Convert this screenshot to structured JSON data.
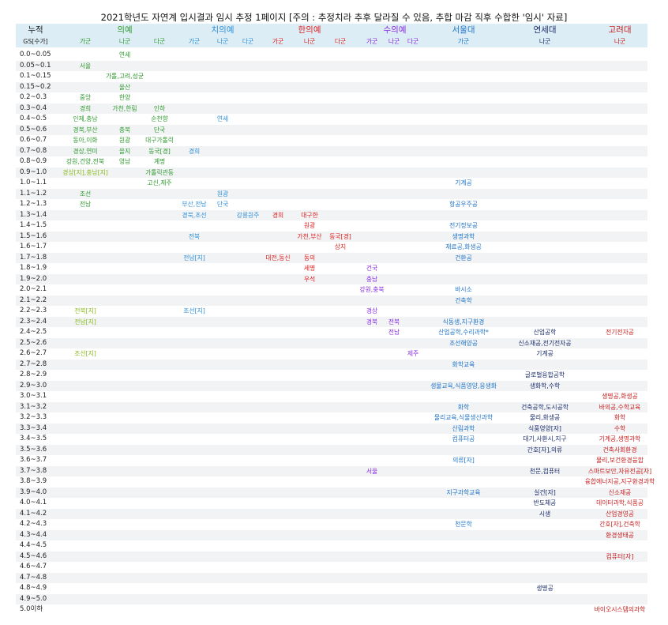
{
  "title": "2021학년도 자연계 입시결과 임시 추정 1페이지 [주의 : 추정치라 추후 달라질 수 있음, 추합 마감 직후 수합한 '임시' 자료]",
  "header": {
    "row1": [
      "누적",
      "의예",
      "치의예",
      "한의예",
      "수의예",
      "서울대",
      "연세대",
      "고려대"
    ],
    "row2": [
      "GS[수가]",
      "가군",
      "나군",
      "다군",
      "가군",
      "나군",
      "다군",
      "가군",
      "나군",
      "다군",
      "가군",
      "나군",
      "다군",
      "가군",
      "나군",
      "나군"
    ]
  },
  "colors": {
    "의예": "#2e9b2e",
    "치의예": "#2e8fd8",
    "한의예": "#e02020",
    "수의예": "#8a2be2",
    "서울대": "#1e73c8",
    "연세대": "#1a2b6b",
    "고려대": "#c81e1e",
    "yellowgreen": "#8bbb1e",
    "header_bg": "#dcedf5"
  },
  "rows": [
    {
      "label": "0.0~0.05",
      "cells": [
        {
          "col": 1,
          "text": "연세"
        }
      ]
    },
    {
      "label": "0.05~0.1",
      "cells": [
        {
          "col": 0,
          "text": "서울"
        }
      ]
    },
    {
      "label": "0.1~0.15",
      "cells": [
        {
          "col": 1,
          "text": "가톨,고려,성균"
        }
      ]
    },
    {
      "label": "0.15~0.2",
      "cells": [
        {
          "col": 1,
          "text": "울산"
        }
      ]
    },
    {
      "label": "0.2~0.3",
      "cells": [
        {
          "col": 0,
          "text": "중앙"
        },
        {
          "col": 1,
          "text": "한양"
        }
      ]
    },
    {
      "label": "0.3~0.4",
      "cells": [
        {
          "col": 0,
          "text": "경희"
        },
        {
          "col": 1,
          "text": "가천,한림"
        },
        {
          "col": 2,
          "text": "인하"
        }
      ]
    },
    {
      "label": "0.4~0.5",
      "cells": [
        {
          "col": 0,
          "text": "인제,충남"
        },
        {
          "col": 2,
          "text": "순천향"
        },
        {
          "col": 4,
          "text": "연세"
        }
      ]
    },
    {
      "label": "0.5~0.6",
      "cells": [
        {
          "col": 0,
          "text": "경북,부산"
        },
        {
          "col": 1,
          "text": "충북"
        },
        {
          "col": 2,
          "text": "단국"
        }
      ]
    },
    {
      "label": "0.6~0.7",
      "cells": [
        {
          "col": 0,
          "text": "동아,이화"
        },
        {
          "col": 1,
          "text": "원광"
        },
        {
          "col": 2,
          "text": "대구가톨릭"
        }
      ]
    },
    {
      "label": "0.7~0.8",
      "cells": [
        {
          "col": 0,
          "text": "경상,연미"
        },
        {
          "col": 1,
          "text": "을지"
        },
        {
          "col": 2,
          "text": "동국[경]"
        },
        {
          "col": 3,
          "text": "경희"
        }
      ]
    },
    {
      "label": "0.8~0.9",
      "cells": [
        {
          "col": 0,
          "text": "강원,건양,전북"
        },
        {
          "col": 1,
          "text": "영남"
        },
        {
          "col": 2,
          "text": "계명"
        }
      ]
    },
    {
      "label": "0.9~1.0",
      "cells": [
        {
          "col": 0,
          "text": "경상[지],충남[지]",
          "color": "yellowgreen"
        },
        {
          "col": 2,
          "text": "가톨릭관동"
        }
      ]
    },
    {
      "label": "1.0~1.1",
      "cells": [
        {
          "col": 2,
          "text": "고신,제주"
        },
        {
          "col": 12,
          "text": "기계공"
        }
      ]
    },
    {
      "label": "1.1~1.2",
      "cells": [
        {
          "col": 0,
          "text": "조선"
        },
        {
          "col": 4,
          "text": "원광"
        }
      ]
    },
    {
      "label": "1.2~1.3",
      "cells": [
        {
          "col": 0,
          "text": "전남"
        },
        {
          "col": 3,
          "text": "부산,전남"
        },
        {
          "col": 4,
          "text": "단국"
        },
        {
          "col": 12,
          "text": "항공우주공"
        }
      ]
    },
    {
      "label": "1.3~1.4",
      "cells": [
        {
          "col": 3,
          "text": "경북,조선"
        },
        {
          "col": 5,
          "text": "강릉원주"
        },
        {
          "col": 6,
          "text": "경희"
        },
        {
          "col": 7,
          "text": "대구한"
        }
      ]
    },
    {
      "label": "1.4~1.5",
      "cells": [
        {
          "col": 7,
          "text": "원광"
        },
        {
          "col": 12,
          "text": "전기정보공"
        }
      ]
    },
    {
      "label": "1.5~1.6",
      "cells": [
        {
          "col": 3,
          "text": "전북"
        },
        {
          "col": 7,
          "text": "가천,부산"
        },
        {
          "col": 8,
          "text": "동국[경]"
        },
        {
          "col": 12,
          "text": "생명과학"
        }
      ]
    },
    {
      "label": "1.6~1.7",
      "cells": [
        {
          "col": 8,
          "text": "상지"
        },
        {
          "col": 12,
          "text": "재료공,화생공"
        }
      ]
    },
    {
      "label": "1.7~1.8",
      "cells": [
        {
          "col": 3,
          "text": "전남[지]"
        },
        {
          "col": 6,
          "text": "대전,동신"
        },
        {
          "col": 7,
          "text": "동의"
        },
        {
          "col": 12,
          "text": "건환공"
        }
      ]
    },
    {
      "label": "1.8~1.9",
      "cells": [
        {
          "col": 7,
          "text": "세명"
        },
        {
          "col": 9,
          "text": "건국"
        }
      ]
    },
    {
      "label": "1.9~2.0",
      "cells": [
        {
          "col": 7,
          "text": "우석"
        },
        {
          "col": 9,
          "text": "충남"
        }
      ]
    },
    {
      "label": "2.0~2.1",
      "cells": [
        {
          "col": 9,
          "text": "강원,충북"
        },
        {
          "col": 12,
          "text": "바시소"
        }
      ]
    },
    {
      "label": "2.1~2.2",
      "cells": [
        {
          "col": 12,
          "text": "건축학"
        }
      ]
    },
    {
      "label": "2.2~2.3",
      "cells": [
        {
          "col": 0,
          "text": "전북[지]",
          "color": "yellowgreen"
        },
        {
          "col": 3,
          "text": "조선[지]"
        },
        {
          "col": 9,
          "text": "경상"
        }
      ]
    },
    {
      "label": "2.3~2.4",
      "cells": [
        {
          "col": 0,
          "text": "전남[지]",
          "color": "yellowgreen"
        },
        {
          "col": 9,
          "text": "경북"
        },
        {
          "col": 10,
          "text": "전북"
        },
        {
          "col": 12,
          "text": "식동생,지구환경"
        }
      ]
    },
    {
      "label": "2.4~2.5",
      "cells": [
        {
          "col": 10,
          "text": "전남"
        },
        {
          "col": 12,
          "text": "산업공학,수리과학*"
        },
        {
          "col": 13,
          "text": "산업공학"
        },
        {
          "col": 14,
          "text": "전기전자공"
        }
      ]
    },
    {
      "label": "2.5~2.6",
      "cells": [
        {
          "col": 12,
          "text": "조선해양공"
        },
        {
          "col": 13,
          "text": "신소재공,전기전자공"
        }
      ]
    },
    {
      "label": "2.6~2.7",
      "cells": [
        {
          "col": 0,
          "text": "조선[지]",
          "color": "yellowgreen"
        },
        {
          "col": 11,
          "text": "제주"
        },
        {
          "col": 13,
          "text": "기계공"
        }
      ]
    },
    {
      "label": "2.7~2.8",
      "cells": [
        {
          "col": 12,
          "text": "화학교육"
        }
      ]
    },
    {
      "label": "2.8~2.9",
      "cells": [
        {
          "col": 13,
          "text": "글로벌융합공학"
        }
      ]
    },
    {
      "label": "2.9~3.0",
      "cells": [
        {
          "col": 12,
          "text": "생물교육,식품영양,응생화"
        },
        {
          "col": 13,
          "text": "생화학,수학"
        }
      ]
    },
    {
      "label": "3.0~3.1",
      "cells": [
        {
          "col": 14,
          "text": "생명공,화생공"
        }
      ]
    },
    {
      "label": "3.1~3.2",
      "cells": [
        {
          "col": 12,
          "text": "화학"
        },
        {
          "col": 13,
          "text": "건축공학,도시공학"
        },
        {
          "col": 14,
          "text": "바의공,수학교육"
        }
      ]
    },
    {
      "label": "3.2~3.3",
      "cells": [
        {
          "col": 12,
          "text": "물리교육,식물생산과학"
        },
        {
          "col": 13,
          "text": "물리,화생공"
        },
        {
          "col": 14,
          "text": "화학"
        }
      ]
    },
    {
      "label": "3.3~3.4",
      "cells": [
        {
          "col": 12,
          "text": "산림과학"
        },
        {
          "col": 13,
          "text": "식품영양[자]"
        },
        {
          "col": 14,
          "text": "수학"
        }
      ]
    },
    {
      "label": "3.4~3.5",
      "cells": [
        {
          "col": 12,
          "text": "컴퓨터공"
        },
        {
          "col": 13,
          "text": "대기,사환시,지구"
        },
        {
          "col": 14,
          "text": "기계공,생명과학"
        }
      ]
    },
    {
      "label": "3.5~3.6",
      "cells": [
        {
          "col": 13,
          "text": "간호[자],의류"
        },
        {
          "col": 14,
          "text": "건축사회환경"
        }
      ]
    },
    {
      "label": "3.6~3.7",
      "cells": [
        {
          "col": 12,
          "text": "의류[자]"
        },
        {
          "col": 14,
          "text": "물리,보건환경융합"
        }
      ]
    },
    {
      "label": "3.7~3.8",
      "cells": [
        {
          "col": 9,
          "text": "서울"
        },
        {
          "col": 13,
          "text": "천문,컴퓨터"
        },
        {
          "col": 14,
          "text": "스마트보안,자유전공[자]"
        }
      ]
    },
    {
      "label": "3.8~3.9",
      "cells": [
        {
          "col": 14,
          "text": "융합에너지공,지구환경과학"
        }
      ]
    },
    {
      "label": "3.9~4.0",
      "cells": [
        {
          "col": 12,
          "text": "지구과학교육"
        },
        {
          "col": 13,
          "text": "실건[자]"
        },
        {
          "col": 14,
          "text": "신소재공"
        }
      ]
    },
    {
      "label": "4.0~4.1",
      "cells": [
        {
          "col": 13,
          "text": "반도체공"
        },
        {
          "col": 14,
          "text": "데이터과학,식품공"
        }
      ]
    },
    {
      "label": "4.1~4.2",
      "cells": [
        {
          "col": 13,
          "text": "시생"
        },
        {
          "col": 14,
          "text": "산업경영공"
        }
      ]
    },
    {
      "label": "4.2~4.3",
      "cells": [
        {
          "col": 12,
          "text": "천문학"
        },
        {
          "col": 14,
          "text": "간호[자],건축학"
        }
      ]
    },
    {
      "label": "4.3~4.4",
      "cells": [
        {
          "col": 14,
          "text": "환경생태공"
        }
      ]
    },
    {
      "label": "4.4~4.5",
      "cells": []
    },
    {
      "label": "4.5~4.6",
      "cells": [
        {
          "col": 14,
          "text": "컴퓨터[자]"
        }
      ]
    },
    {
      "label": "4.6~4.7",
      "cells": []
    },
    {
      "label": "4.7~4.8",
      "cells": []
    },
    {
      "label": "4.8~4.9",
      "cells": [
        {
          "col": 13,
          "text": "생명공"
        }
      ]
    },
    {
      "label": "4.9~5.0",
      "cells": []
    },
    {
      "label": "5.0이하",
      "cells": [
        {
          "col": 14,
          "text": "바이오시스템의과학"
        }
      ]
    }
  ]
}
